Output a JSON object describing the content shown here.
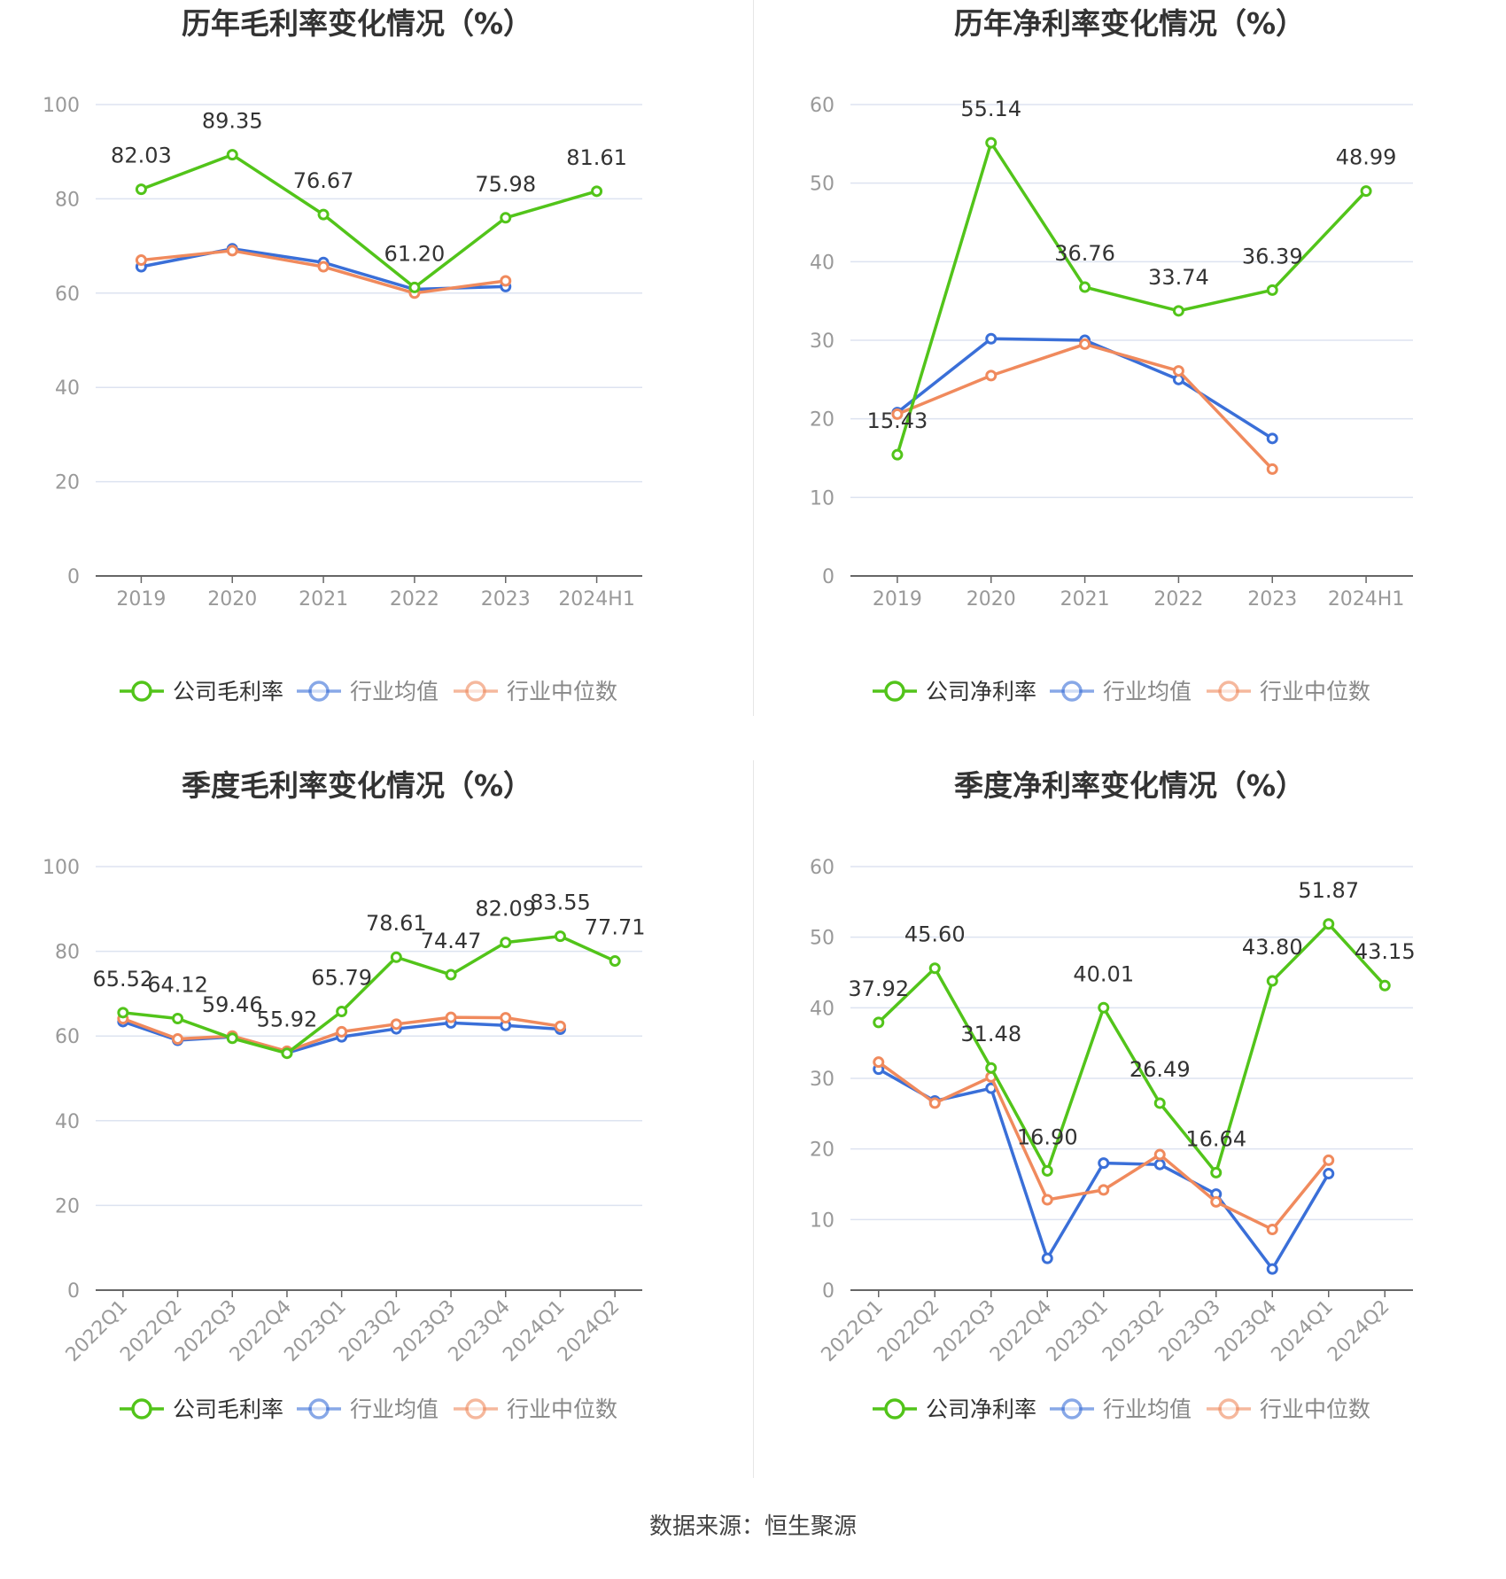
{
  "source": "数据来源：恒生聚源",
  "charts": [
    {
      "title": "历年毛利率变化情况（%）",
      "legend": [
        "公司毛利率",
        "行业均值",
        "行业中位数"
      ]
    },
    {
      "title": "历年净利率变化情况（%）",
      "legend": [
        "公司净利率",
        "行业均值",
        "行业中位数"
      ]
    },
    {
      "title": "季度毛利率变化情况（%）",
      "legend": [
        "公司毛利率",
        "行业均值",
        "行业中位数"
      ]
    },
    {
      "title": "季度净利率变化情况（%）",
      "legend": [
        "公司净利率",
        "行业均值",
        "行业中位数"
      ]
    }
  ],
  "colors": {
    "company": "#52c41a",
    "avg": "#3a6fd8",
    "median": "#f08a5d",
    "grid": "#dde3f0",
    "axis": "#999999"
  },
  "chart_data": [
    {
      "type": "line",
      "title": "历年毛利率变化情况（%）",
      "categories": [
        "2019",
        "2020",
        "2021",
        "2022",
        "2023",
        "2024H1"
      ],
      "ylim": [
        0,
        100
      ],
      "yticks": [
        0,
        20,
        40,
        60,
        80,
        100
      ],
      "series": [
        {
          "name": "公司毛利率",
          "values": [
            82.03,
            89.35,
            76.67,
            61.2,
            75.98,
            81.61
          ],
          "labels": [
            "82.03",
            "89.35",
            "76.67",
            "61.20",
            "75.98",
            "81.61"
          ]
        },
        {
          "name": "行业均值",
          "values": [
            65.6,
            69.4,
            66.5,
            60.8,
            61.4,
            null
          ]
        },
        {
          "name": "行业中位数",
          "values": [
            67.0,
            69.0,
            65.6,
            60.0,
            62.6,
            null
          ]
        }
      ]
    },
    {
      "type": "line",
      "title": "历年净利率变化情况（%）",
      "categories": [
        "2019",
        "2020",
        "2021",
        "2022",
        "2023",
        "2024H1"
      ],
      "ylim": [
        0,
        60
      ],
      "yticks": [
        0,
        10,
        20,
        30,
        40,
        50,
        60
      ],
      "series": [
        {
          "name": "公司净利率",
          "values": [
            15.43,
            55.14,
            36.76,
            33.74,
            36.39,
            48.99
          ],
          "labels": [
            "15.43",
            "55.14",
            "36.76",
            "33.74",
            "36.39",
            "48.99"
          ]
        },
        {
          "name": "行业均值",
          "values": [
            20.8,
            30.2,
            30.0,
            25.0,
            17.5,
            null
          ]
        },
        {
          "name": "行业中位数",
          "values": [
            20.6,
            25.5,
            29.5,
            26.1,
            13.6,
            null
          ]
        }
      ]
    },
    {
      "type": "line",
      "title": "季度毛利率变化情况（%）",
      "categories": [
        "2022Q1",
        "2022Q2",
        "2022Q3",
        "2022Q4",
        "2023Q1",
        "2023Q2",
        "2023Q3",
        "2023Q4",
        "2024Q1",
        "2024Q2"
      ],
      "ylim": [
        0,
        100
      ],
      "yticks": [
        0,
        20,
        40,
        60,
        80,
        100
      ],
      "series": [
        {
          "name": "公司毛利率",
          "values": [
            65.52,
            64.12,
            59.46,
            55.92,
            65.79,
            78.61,
            74.47,
            82.09,
            83.55,
            77.71
          ],
          "labels": [
            "65.52",
            "64.12",
            "59.46",
            "55.92",
            "65.79",
            "78.61",
            "74.47",
            "82.09",
            "83.55",
            "77.71"
          ]
        },
        {
          "name": "行业均值",
          "values": [
            63.4,
            59.0,
            59.8,
            56.0,
            59.8,
            61.7,
            63.1,
            62.5,
            61.6,
            null
          ]
        },
        {
          "name": "行业中位数",
          "values": [
            64.1,
            59.3,
            60.0,
            56.4,
            61.0,
            62.8,
            64.4,
            64.3,
            62.3,
            null
          ]
        }
      ]
    },
    {
      "type": "line",
      "title": "季度净利率变化情况（%）",
      "categories": [
        "2022Q1",
        "2022Q2",
        "2022Q3",
        "2022Q4",
        "2023Q1",
        "2023Q2",
        "2023Q3",
        "2023Q4",
        "2024Q1",
        "2024Q2"
      ],
      "ylim": [
        0,
        60
      ],
      "yticks": [
        0,
        10,
        20,
        30,
        40,
        50,
        60
      ],
      "series": [
        {
          "name": "公司净利率",
          "values": [
            37.92,
            45.6,
            31.48,
            16.9,
            40.01,
            26.49,
            16.64,
            43.8,
            51.87,
            43.15
          ],
          "labels": [
            "37.92",
            "45.60",
            "31.48",
            "16.90",
            "40.01",
            "26.49",
            "16.64",
            "43.80",
            "51.87",
            "43.15"
          ]
        },
        {
          "name": "行业均值",
          "values": [
            31.3,
            26.8,
            28.6,
            4.5,
            18.0,
            17.8,
            13.6,
            3.0,
            16.5,
            null
          ]
        },
        {
          "name": "行业中位数",
          "values": [
            32.3,
            26.5,
            30.2,
            12.8,
            14.2,
            19.2,
            12.5,
            8.6,
            18.4,
            null
          ]
        }
      ]
    }
  ]
}
